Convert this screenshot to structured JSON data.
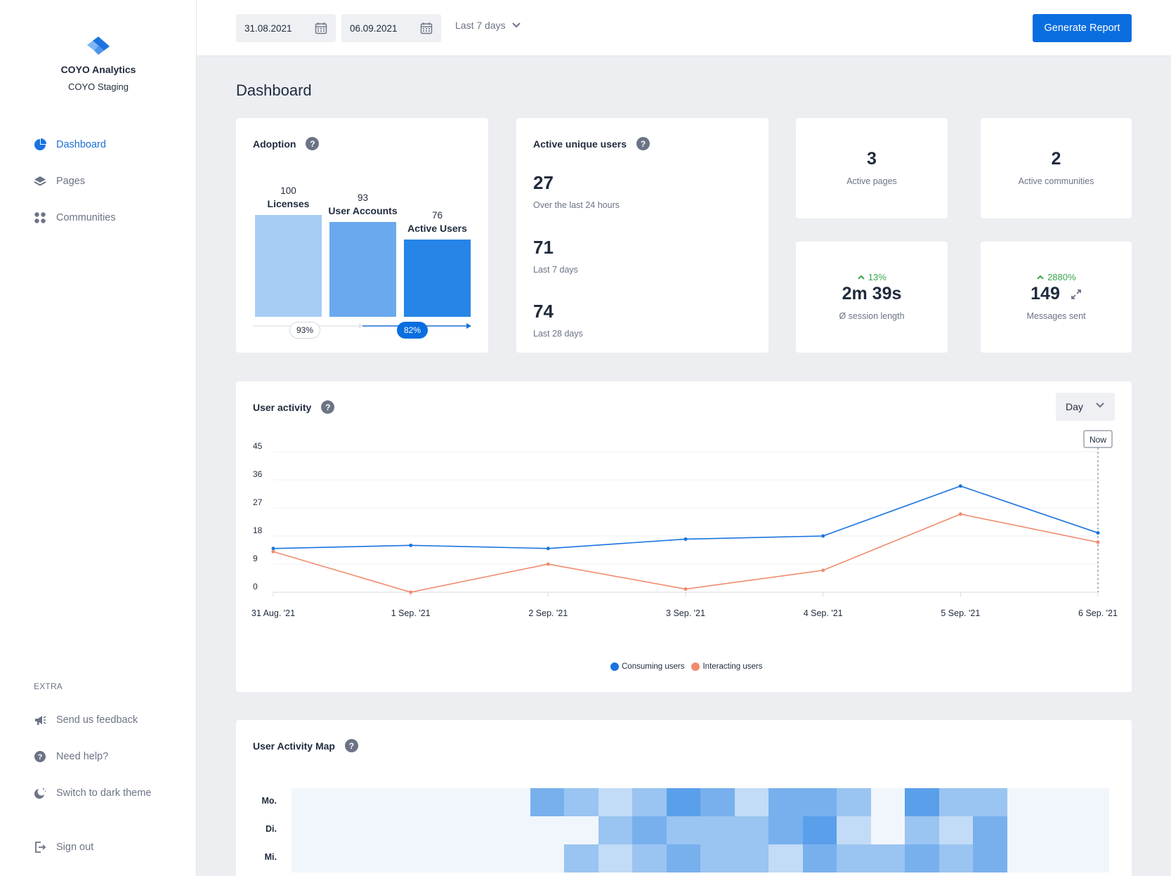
{
  "brand": {
    "name": "COYO Analytics",
    "subtitle": "COYO Staging"
  },
  "sidebar": {
    "nav": [
      {
        "label": "Dashboard",
        "icon": "pie-chart-icon",
        "active": true
      },
      {
        "label": "Pages",
        "icon": "layers-icon",
        "active": false
      },
      {
        "label": "Communities",
        "icon": "grid-dots-icon",
        "active": false
      }
    ],
    "extra_title": "EXTRA",
    "extra": [
      {
        "label": "Send us feedback",
        "icon": "megaphone-icon"
      },
      {
        "label": "Need help?",
        "icon": "help-circle-icon"
      },
      {
        "label": "Switch to dark theme",
        "icon": "moon-icon"
      }
    ],
    "signout": {
      "label": "Sign out",
      "icon": "sign-out-icon"
    }
  },
  "topbar": {
    "date_from": "31.08.2021",
    "date_to": "06.09.2021",
    "range": "Last 7 days",
    "generate_label": "Generate Report"
  },
  "page_title": "Dashboard",
  "adoption": {
    "title": "Adoption",
    "bars": [
      {
        "value": "100",
        "label": "Licenses",
        "color": "#a8cdf5"
      },
      {
        "value": "93",
        "label": "User Accounts",
        "color": "#6aa9ee"
      },
      {
        "value": "76",
        "label": "Active Users",
        "color": "#2685e6"
      }
    ],
    "pct1": "93%",
    "pct2": "82%"
  },
  "unique_users": {
    "title": "Active unique users",
    "stats": [
      {
        "value": "27",
        "label": "Over the last 24 hours"
      },
      {
        "value": "71",
        "label": "Last 7 days"
      },
      {
        "value": "74",
        "label": "Last 28 days"
      }
    ]
  },
  "kpis": {
    "active_pages": {
      "value": "3",
      "label": "Active pages"
    },
    "active_communities": {
      "value": "2",
      "label": "Active communities"
    },
    "session": {
      "delta": "13%",
      "value": "2m 39s",
      "label": "Ø session length"
    },
    "messages": {
      "delta": "2880%",
      "value": "149",
      "label": "Messages sent"
    }
  },
  "user_activity": {
    "title": "User activity",
    "granularity": "Day",
    "now_label": "Now",
    "legend": [
      {
        "name": "Consuming users",
        "color": "#1a73e0"
      },
      {
        "name": "Interacting users",
        "color": "#f08c6e"
      }
    ]
  },
  "chart_data": {
    "type": "line",
    "x": [
      "31 Aug. '21",
      "1 Sep. '21",
      "2 Sep. '21",
      "3 Sep. '21",
      "4 Sep. '21",
      "5 Sep. '21",
      "6 Sep. '21"
    ],
    "yticks": [
      0,
      9,
      18,
      27,
      36,
      45
    ],
    "ylim": [
      0,
      45
    ],
    "series": [
      {
        "name": "Consuming users",
        "values": [
          14,
          15,
          14,
          17,
          18,
          34,
          19
        ],
        "color": "#1a73e0"
      },
      {
        "name": "Interacting users",
        "values": [
          13,
          0,
          9,
          1,
          7,
          25,
          16
        ],
        "color": "#f08c6e"
      }
    ],
    "grid": true,
    "legend": "bottom"
  },
  "activity_map": {
    "title": "User Activity Map",
    "days": [
      "Mo.",
      "Di.",
      "Mi."
    ],
    "columns": 24,
    "rows": [
      [
        0,
        0,
        0,
        0,
        0,
        0,
        0,
        3,
        2,
        1,
        2,
        4,
        3,
        1,
        3,
        3,
        2,
        0,
        4,
        2,
        2,
        0,
        0,
        0
      ],
      [
        0,
        0,
        0,
        0,
        0,
        0,
        0,
        0,
        0,
        2,
        3,
        2,
        2,
        2,
        3,
        4,
        1,
        0,
        2,
        1,
        3,
        0,
        0,
        0
      ],
      [
        0,
        0,
        0,
        0,
        0,
        0,
        0,
        0,
        2,
        1,
        2,
        3,
        2,
        2,
        1,
        3,
        2,
        2,
        3,
        2,
        3,
        0,
        0,
        0
      ]
    ]
  }
}
